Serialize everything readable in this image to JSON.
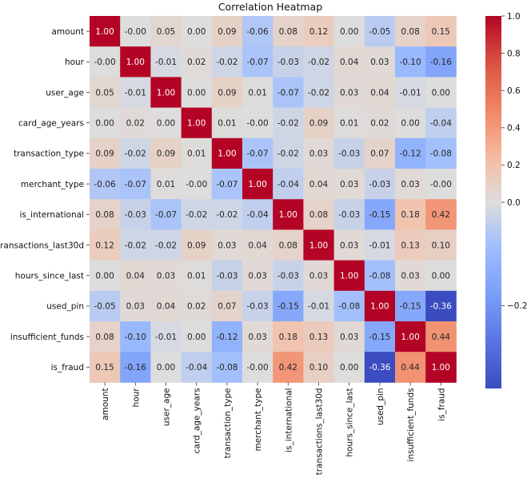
{
  "chart_data": {
    "type": "heatmap",
    "title": "Correlation Heatmap",
    "xlabel": "",
    "ylabel": "",
    "labels": [
      "amount",
      "hour",
      "user_age",
      "card_age_years",
      "transaction_type",
      "merchant_type",
      "is_international",
      "transactions_last30d",
      "hours_since_last",
      "used_pin",
      "insufficient_funds",
      "is_fraud"
    ],
    "values": [
      [
        1.0,
        -0.0,
        0.05,
        0.0,
        0.09,
        -0.06,
        0.08,
        0.12,
        0.0,
        -0.05,
        0.08,
        0.15
      ],
      [
        -0.0,
        1.0,
        -0.01,
        0.02,
        -0.02,
        -0.07,
        -0.03,
        -0.02,
        0.04,
        0.03,
        -0.1,
        -0.16
      ],
      [
        0.05,
        -0.01,
        1.0,
        0.0,
        0.09,
        0.01,
        -0.07,
        -0.02,
        0.03,
        0.04,
        -0.01,
        0.0
      ],
      [
        0.0,
        0.02,
        0.0,
        1.0,
        0.01,
        -0.0,
        -0.02,
        0.09,
        0.01,
        0.02,
        0.0,
        -0.04
      ],
      [
        0.09,
        -0.02,
        0.09,
        0.01,
        1.0,
        -0.07,
        -0.02,
        0.03,
        -0.03,
        0.07,
        -0.12,
        -0.08
      ],
      [
        -0.06,
        -0.07,
        0.01,
        -0.0,
        -0.07,
        1.0,
        -0.04,
        0.04,
        0.03,
        -0.03,
        0.03,
        -0.0
      ],
      [
        0.08,
        -0.03,
        -0.07,
        -0.02,
        -0.02,
        -0.04,
        1.0,
        0.08,
        -0.03,
        -0.15,
        0.18,
        0.42
      ],
      [
        0.12,
        -0.02,
        -0.02,
        0.09,
        0.03,
        0.04,
        0.08,
        1.0,
        0.03,
        -0.01,
        0.13,
        0.1
      ],
      [
        0.0,
        0.04,
        0.03,
        0.01,
        -0.03,
        0.03,
        -0.03,
        0.03,
        1.0,
        -0.08,
        0.03,
        0.0
      ],
      [
        -0.05,
        0.03,
        0.04,
        0.02,
        0.07,
        -0.03,
        -0.15,
        -0.01,
        -0.08,
        1.0,
        -0.15,
        -0.36
      ],
      [
        0.08,
        -0.1,
        -0.01,
        0.0,
        -0.12,
        0.03,
        0.18,
        0.13,
        0.03,
        -0.15,
        1.0,
        0.44
      ],
      [
        0.15,
        -0.16,
        0.0,
        -0.04,
        -0.08,
        -0.0,
        0.42,
        0.1,
        0.0,
        -0.36,
        0.44,
        1.0
      ]
    ],
    "value_display": [
      [
        "1.00",
        "-0.00",
        "0.05",
        "0.00",
        "0.09",
        "-0.06",
        "0.08",
        "0.12",
        "0.00",
        "-0.05",
        "0.08",
        "0.15"
      ],
      [
        "-0.00",
        "1.00",
        "-0.01",
        "0.02",
        "-0.02",
        "-0.07",
        "-0.03",
        "-0.02",
        "0.04",
        "0.03",
        "-0.10",
        "-0.16"
      ],
      [
        "0.05",
        "-0.01",
        "1.00",
        "0.00",
        "0.09",
        "0.01",
        "-0.07",
        "-0.02",
        "0.03",
        "0.04",
        "-0.01",
        "0.00"
      ],
      [
        "0.00",
        "0.02",
        "0.00",
        "1.00",
        "0.01",
        "-0.00",
        "-0.02",
        "0.09",
        "0.01",
        "0.02",
        "0.00",
        "-0.04"
      ],
      [
        "0.09",
        "-0.02",
        "0.09",
        "0.01",
        "1.00",
        "-0.07",
        "-0.02",
        "0.03",
        "-0.03",
        "0.07",
        "-0.12",
        "-0.08"
      ],
      [
        "-0.06",
        "-0.07",
        "0.01",
        "-0.00",
        "-0.07",
        "1.00",
        "-0.04",
        "0.04",
        "0.03",
        "-0.03",
        "0.03",
        "-0.00"
      ],
      [
        "0.08",
        "-0.03",
        "-0.07",
        "-0.02",
        "-0.02",
        "-0.04",
        "1.00",
        "0.08",
        "-0.03",
        "-0.15",
        "0.18",
        "0.42"
      ],
      [
        "0.12",
        "-0.02",
        "-0.02",
        "0.09",
        "0.03",
        "0.04",
        "0.08",
        "1.00",
        "0.03",
        "-0.01",
        "0.13",
        "0.10"
      ],
      [
        "0.00",
        "0.04",
        "0.03",
        "0.01",
        "-0.03",
        "0.03",
        "-0.03",
        "0.03",
        "1.00",
        "-0.08",
        "0.03",
        "0.00"
      ],
      [
        "-0.05",
        "0.03",
        "0.04",
        "0.02",
        "0.07",
        "-0.03",
        "-0.15",
        "-0.01",
        "-0.08",
        "1.00",
        "-0.15",
        "-0.36"
      ],
      [
        "0.08",
        "-0.10",
        "-0.01",
        "0.00",
        "-0.12",
        "0.03",
        "0.18",
        "0.13",
        "0.03",
        "-0.15",
        "1.00",
        "0.44"
      ],
      [
        "0.15",
        "-0.16",
        "0.00",
        "-0.04",
        "-0.08",
        "-0.00",
        "0.42",
        "0.10",
        "0.00",
        "-0.36",
        "0.44",
        "1.00"
      ]
    ],
    "colormap": "coolwarm",
    "colorbar": {
      "range": [
        -0.36,
        1.0
      ],
      "ticks": [
        1.0,
        0.8,
        0.6,
        0.4,
        0.2,
        0.0,
        -0.2
      ],
      "tick_labels": [
        "1.0",
        "0.8",
        "0.6",
        "0.4",
        "0.2",
        "0.0",
        "−0.2"
      ]
    }
  }
}
